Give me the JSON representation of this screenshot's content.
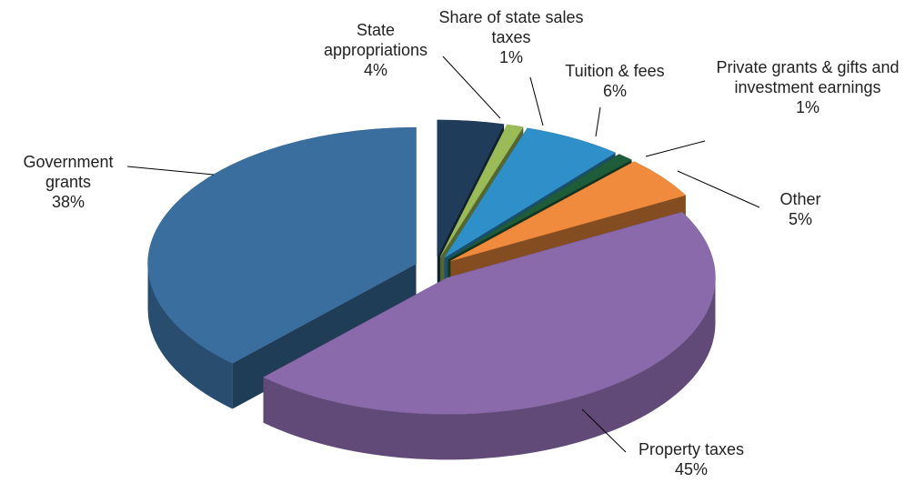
{
  "chart_data": {
    "type": "pie",
    "categories": [
      "State appropriations",
      "Share of state sales taxes",
      "Tuition & fees",
      "Private grants & gifts and investment earnings",
      "Other",
      "Property taxes",
      "Government grants"
    ],
    "values": [
      4,
      1,
      6,
      1,
      5,
      45,
      38
    ],
    "value_labels": [
      "4%",
      "1%",
      "6%",
      "1%",
      "5%",
      "45%",
      "38%"
    ],
    "colors": [
      "#1f3d5a",
      "#9bbb59",
      "#2e8fc9",
      "#1e5c3a",
      "#f08a3c",
      "#8a6aab",
      "#3a6e9e"
    ]
  }
}
